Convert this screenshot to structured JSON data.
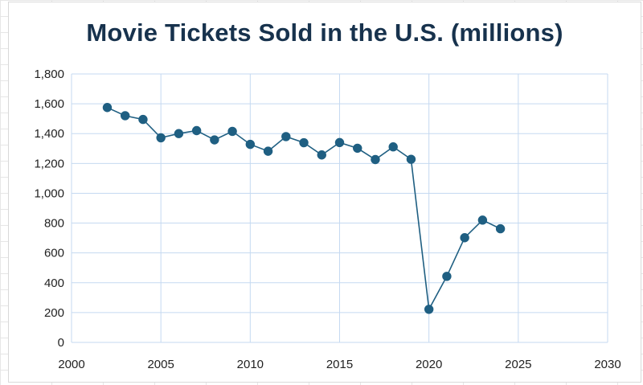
{
  "chart_data": {
    "type": "scatter",
    "title": "Movie Tickets Sold in the U.S. (millions)",
    "xlabel": "",
    "ylabel": "",
    "xlim": [
      2000,
      2030
    ],
    "ylim": [
      0,
      1800
    ],
    "x_ticks": [
      2000,
      2005,
      2010,
      2015,
      2020,
      2025,
      2030
    ],
    "y_ticks": [
      0,
      200,
      400,
      600,
      800,
      1000,
      1200,
      1400,
      1600,
      1800
    ],
    "grid": true,
    "legend": "none",
    "series": [
      {
        "x": [
          2002,
          2003,
          2004,
          2005,
          2006,
          2007,
          2008,
          2009,
          2010,
          2011,
          2012,
          2013,
          2014,
          2015,
          2016,
          2017,
          2018,
          2019,
          2020,
          2021,
          2022,
          2023,
          2024
        ],
        "values": [
          1575,
          1520,
          1495,
          1372,
          1400,
          1420,
          1358,
          1415,
          1328,
          1282,
          1380,
          1339,
          1257,
          1340,
          1302,
          1226,
          1311,
          1228,
          222,
          443,
          702,
          820,
          762
        ]
      }
    ],
    "color": "#1f5f82"
  }
}
